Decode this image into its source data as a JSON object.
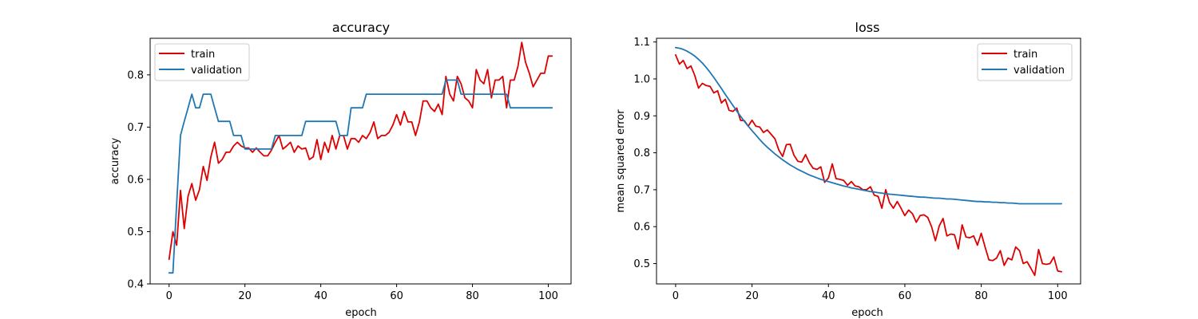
{
  "colors": {
    "train": "#dd0000",
    "validation": "#1f77b4"
  },
  "chart_data": [
    {
      "type": "line",
      "title": "accuracy",
      "xlabel": "epoch",
      "ylabel": "accuracy",
      "xlim": [
        -5,
        106
      ],
      "ylim": [
        0.4,
        0.87
      ],
      "xticks": [
        0,
        20,
        40,
        60,
        80,
        100
      ],
      "yticks": [
        0.4,
        0.5,
        0.6,
        0.7,
        0.8
      ],
      "ytick_labels": [
        "0.4",
        "0.5",
        "0.6",
        "0.7",
        "0.8"
      ],
      "grid": false,
      "legend": "upper-left",
      "series": [
        {
          "name": "train",
          "x": [
            0,
            1,
            2,
            3,
            4,
            5,
            6,
            7,
            8,
            9,
            10,
            11,
            12,
            13,
            14,
            15,
            16,
            17,
            18,
            19,
            20,
            21,
            22,
            23,
            24,
            25,
            26,
            27,
            28,
            29,
            30,
            31,
            32,
            33,
            34,
            35,
            36,
            37,
            38,
            39,
            40,
            41,
            42,
            43,
            44,
            45,
            46,
            47,
            48,
            49,
            50,
            51,
            52,
            53,
            54,
            55,
            56,
            57,
            58,
            59,
            60,
            61,
            62,
            63,
            64,
            65,
            66,
            67,
            68,
            69,
            70,
            71,
            72,
            73,
            74,
            75,
            76,
            77,
            78,
            79,
            80,
            81,
            82,
            83,
            84,
            85,
            86,
            87,
            88,
            89,
            90,
            91,
            92,
            93,
            94,
            95,
            96,
            97,
            98,
            99,
            100,
            101
          ],
          "y": [
            0.447,
            0.5,
            0.474,
            0.579,
            0.506,
            0.568,
            0.592,
            0.56,
            0.58,
            0.625,
            0.598,
            0.643,
            0.671,
            0.631,
            0.638,
            0.652,
            0.652,
            0.664,
            0.671,
            0.664,
            0.66,
            0.66,
            0.652,
            0.66,
            0.652,
            0.645,
            0.645,
            0.656,
            0.671,
            0.684,
            0.658,
            0.664,
            0.671,
            0.652,
            0.664,
            0.658,
            0.66,
            0.638,
            0.643,
            0.676,
            0.638,
            0.671,
            0.652,
            0.684,
            0.658,
            0.684,
            0.684,
            0.658,
            0.678,
            0.678,
            0.671,
            0.684,
            0.678,
            0.69,
            0.71,
            0.678,
            0.684,
            0.684,
            0.69,
            0.704,
            0.724,
            0.704,
            0.73,
            0.71,
            0.71,
            0.684,
            0.71,
            0.75,
            0.75,
            0.737,
            0.73,
            0.744,
            0.724,
            0.797,
            0.763,
            0.75,
            0.797,
            0.783,
            0.756,
            0.75,
            0.737,
            0.81,
            0.79,
            0.783,
            0.81,
            0.756,
            0.79,
            0.79,
            0.797,
            0.737,
            0.79,
            0.79,
            0.816,
            0.862,
            0.824,
            0.803,
            0.777,
            0.79,
            0.803,
            0.803,
            0.836,
            0.836
          ]
        },
        {
          "name": "validation",
          "x": [
            0,
            1,
            2,
            3,
            4,
            5,
            6,
            7,
            8,
            9,
            10,
            11,
            12,
            13,
            14,
            15,
            16,
            17,
            18,
            19,
            20,
            21,
            22,
            23,
            24,
            25,
            26,
            27,
            28,
            29,
            30,
            31,
            32,
            33,
            34,
            35,
            36,
            37,
            38,
            39,
            40,
            41,
            42,
            43,
            44,
            45,
            46,
            47,
            48,
            49,
            50,
            51,
            52,
            53,
            54,
            55,
            56,
            57,
            58,
            59,
            60,
            61,
            62,
            63,
            64,
            65,
            66,
            67,
            68,
            69,
            70,
            71,
            72,
            73,
            74,
            75,
            76,
            77,
            78,
            79,
            80,
            81,
            82,
            83,
            84,
            85,
            86,
            87,
            88,
            89,
            90,
            91,
            92,
            93,
            94,
            95,
            96,
            97,
            98,
            99,
            100,
            101
          ],
          "y": [
            0.421,
            0.421,
            0.553,
            0.684,
            0.711,
            0.737,
            0.763,
            0.737,
            0.737,
            0.763,
            0.763,
            0.763,
            0.737,
            0.711,
            0.711,
            0.711,
            0.711,
            0.684,
            0.684,
            0.684,
            0.658,
            0.658,
            0.658,
            0.658,
            0.658,
            0.658,
            0.658,
            0.658,
            0.684,
            0.684,
            0.684,
            0.684,
            0.684,
            0.684,
            0.684,
            0.684,
            0.711,
            0.711,
            0.711,
            0.711,
            0.711,
            0.711,
            0.711,
            0.711,
            0.711,
            0.684,
            0.684,
            0.684,
            0.737,
            0.737,
            0.737,
            0.737,
            0.763,
            0.763,
            0.763,
            0.763,
            0.763,
            0.763,
            0.763,
            0.763,
            0.763,
            0.763,
            0.763,
            0.763,
            0.763,
            0.763,
            0.763,
            0.763,
            0.763,
            0.763,
            0.763,
            0.763,
            0.763,
            0.79,
            0.79,
            0.79,
            0.79,
            0.763,
            0.763,
            0.763,
            0.763,
            0.763,
            0.763,
            0.763,
            0.763,
            0.763,
            0.763,
            0.763,
            0.763,
            0.763,
            0.737,
            0.737,
            0.737,
            0.737,
            0.737,
            0.737,
            0.737,
            0.737,
            0.737,
            0.737,
            0.737,
            0.737
          ]
        }
      ]
    },
    {
      "type": "line",
      "title": "loss",
      "xlabel": "epoch",
      "ylabel": "mean squared error",
      "xlim": [
        -5,
        106
      ],
      "ylim": [
        0.445,
        1.11
      ],
      "xticks": [
        0,
        20,
        40,
        60,
        80,
        100
      ],
      "yticks": [
        0.5,
        0.6,
        0.7,
        0.8,
        0.9,
        1.0,
        1.1
      ],
      "ytick_labels": [
        "0.5",
        "0.6",
        "0.7",
        "0.8",
        "0.9",
        "1.0",
        "1.1"
      ],
      "grid": false,
      "legend": "upper-right",
      "series": [
        {
          "name": "train",
          "x": [
            0,
            1,
            2,
            3,
            4,
            5,
            6,
            7,
            8,
            9,
            10,
            11,
            12,
            13,
            14,
            15,
            16,
            17,
            18,
            19,
            20,
            21,
            22,
            23,
            24,
            25,
            26,
            27,
            28,
            29,
            30,
            31,
            32,
            33,
            34,
            35,
            36,
            37,
            38,
            39,
            40,
            41,
            42,
            43,
            44,
            45,
            46,
            47,
            48,
            49,
            50,
            51,
            52,
            53,
            54,
            55,
            56,
            57,
            58,
            59,
            60,
            61,
            62,
            63,
            64,
            65,
            66,
            67,
            68,
            69,
            70,
            71,
            72,
            73,
            74,
            75,
            76,
            77,
            78,
            79,
            80,
            81,
            82,
            83,
            84,
            85,
            86,
            87,
            88,
            89,
            90,
            91,
            92,
            93,
            94,
            95,
            96,
            97,
            98,
            99,
            100,
            101
          ],
          "y": [
            1.065,
            1.04,
            1.05,
            1.028,
            1.035,
            1.01,
            0.975,
            0.988,
            0.982,
            0.98,
            0.962,
            0.968,
            0.935,
            0.945,
            0.915,
            0.912,
            0.921,
            0.888,
            0.887,
            0.872,
            0.888,
            0.872,
            0.87,
            0.855,
            0.862,
            0.85,
            0.838,
            0.808,
            0.79,
            0.822,
            0.823,
            0.793,
            0.777,
            0.775,
            0.795,
            0.773,
            0.758,
            0.755,
            0.762,
            0.72,
            0.732,
            0.77,
            0.73,
            0.728,
            0.725,
            0.712,
            0.722,
            0.71,
            0.708,
            0.7,
            0.7,
            0.708,
            0.685,
            0.682,
            0.65,
            0.7,
            0.665,
            0.65,
            0.668,
            0.65,
            0.63,
            0.645,
            0.635,
            0.612,
            0.63,
            0.632,
            0.625,
            0.6,
            0.562,
            0.602,
            0.622,
            0.575,
            0.58,
            0.578,
            0.54,
            0.605,
            0.572,
            0.57,
            0.575,
            0.55,
            0.582,
            0.545,
            0.51,
            0.508,
            0.515,
            0.535,
            0.495,
            0.515,
            0.51,
            0.545,
            0.535,
            0.5,
            0.505,
            0.487,
            0.468,
            0.538,
            0.5,
            0.498,
            0.5,
            0.518,
            0.48,
            0.478
          ]
        },
        {
          "name": "validation",
          "x": [
            0,
            1,
            2,
            3,
            4,
            5,
            6,
            7,
            8,
            9,
            10,
            11,
            12,
            13,
            14,
            15,
            16,
            17,
            18,
            19,
            20,
            21,
            22,
            23,
            24,
            25,
            26,
            27,
            28,
            29,
            30,
            31,
            32,
            33,
            34,
            35,
            36,
            37,
            38,
            39,
            40,
            41,
            42,
            43,
            44,
            45,
            46,
            47,
            48,
            49,
            50,
            51,
            52,
            53,
            54,
            55,
            56,
            57,
            58,
            59,
            60,
            61,
            62,
            63,
            64,
            65,
            66,
            67,
            68,
            69,
            70,
            71,
            72,
            73,
            74,
            75,
            76,
            77,
            78,
            79,
            80,
            81,
            82,
            83,
            84,
            85,
            86,
            87,
            88,
            89,
            90,
            91,
            92,
            93,
            94,
            95,
            96,
            97,
            98,
            99,
            100,
            101
          ],
          "y": [
            1.085,
            1.083,
            1.08,
            1.075,
            1.069,
            1.062,
            1.053,
            1.043,
            1.031,
            1.018,
            1.004,
            0.989,
            0.974,
            0.958,
            0.943,
            0.928,
            0.913,
            0.899,
            0.885,
            0.872,
            0.86,
            0.848,
            0.836,
            0.825,
            0.815,
            0.806,
            0.797,
            0.789,
            0.781,
            0.774,
            0.767,
            0.761,
            0.755,
            0.75,
            0.745,
            0.74,
            0.736,
            0.732,
            0.728,
            0.725,
            0.722,
            0.719,
            0.716,
            0.713,
            0.71,
            0.708,
            0.705,
            0.703,
            0.701,
            0.699,
            0.697,
            0.695,
            0.694,
            0.692,
            0.691,
            0.689,
            0.688,
            0.687,
            0.686,
            0.685,
            0.684,
            0.683,
            0.682,
            0.681,
            0.68,
            0.68,
            0.679,
            0.678,
            0.677,
            0.677,
            0.676,
            0.675,
            0.675,
            0.674,
            0.673,
            0.672,
            0.671,
            0.67,
            0.669,
            0.668,
            0.668,
            0.667,
            0.667,
            0.666,
            0.666,
            0.665,
            0.665,
            0.664,
            0.664,
            0.663,
            0.662,
            0.662,
            0.662,
            0.662,
            0.662,
            0.662,
            0.662,
            0.662,
            0.662,
            0.662,
            0.662,
            0.662
          ]
        }
      ]
    }
  ]
}
